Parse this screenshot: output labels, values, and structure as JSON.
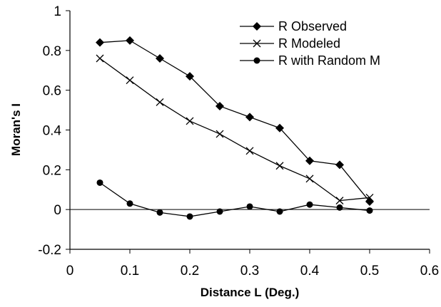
{
  "chart_data": {
    "type": "line",
    "xlabel": "Distance L (Deg.)",
    "ylabel": "Moran's I",
    "xlim": [
      0,
      0.6
    ],
    "ylim": [
      -0.2,
      1
    ],
    "xticks": [
      "0",
      "0.1",
      "0.2",
      "0.3",
      "0.4",
      "0.5",
      "0.6"
    ],
    "yticks": [
      "-0.2",
      "0",
      "0.2",
      "0.4",
      "0.6",
      "0.8",
      "1"
    ],
    "grid": false,
    "legend_position": "top-right",
    "x": [
      0.05,
      0.1,
      0.15,
      0.2,
      0.25,
      0.3,
      0.35,
      0.4,
      0.45,
      0.5
    ],
    "series": [
      {
        "name": "R Observed",
        "marker": "diamond",
        "color": "#000000",
        "values": [
          0.84,
          0.85,
          0.76,
          0.67,
          0.52,
          0.465,
          0.41,
          0.245,
          0.225,
          0.04
        ]
      },
      {
        "name": "R Modeled",
        "marker": "x",
        "color": "#000000",
        "values": [
          0.76,
          0.65,
          0.54,
          0.445,
          0.38,
          0.295,
          0.22,
          0.155,
          0.045,
          0.06
        ]
      },
      {
        "name": "R with Random M",
        "marker": "circle",
        "color": "#000000",
        "values": [
          0.135,
          0.03,
          -0.015,
          -0.035,
          -0.01,
          0.015,
          -0.01,
          0.025,
          0.01,
          -0.005
        ]
      }
    ]
  }
}
